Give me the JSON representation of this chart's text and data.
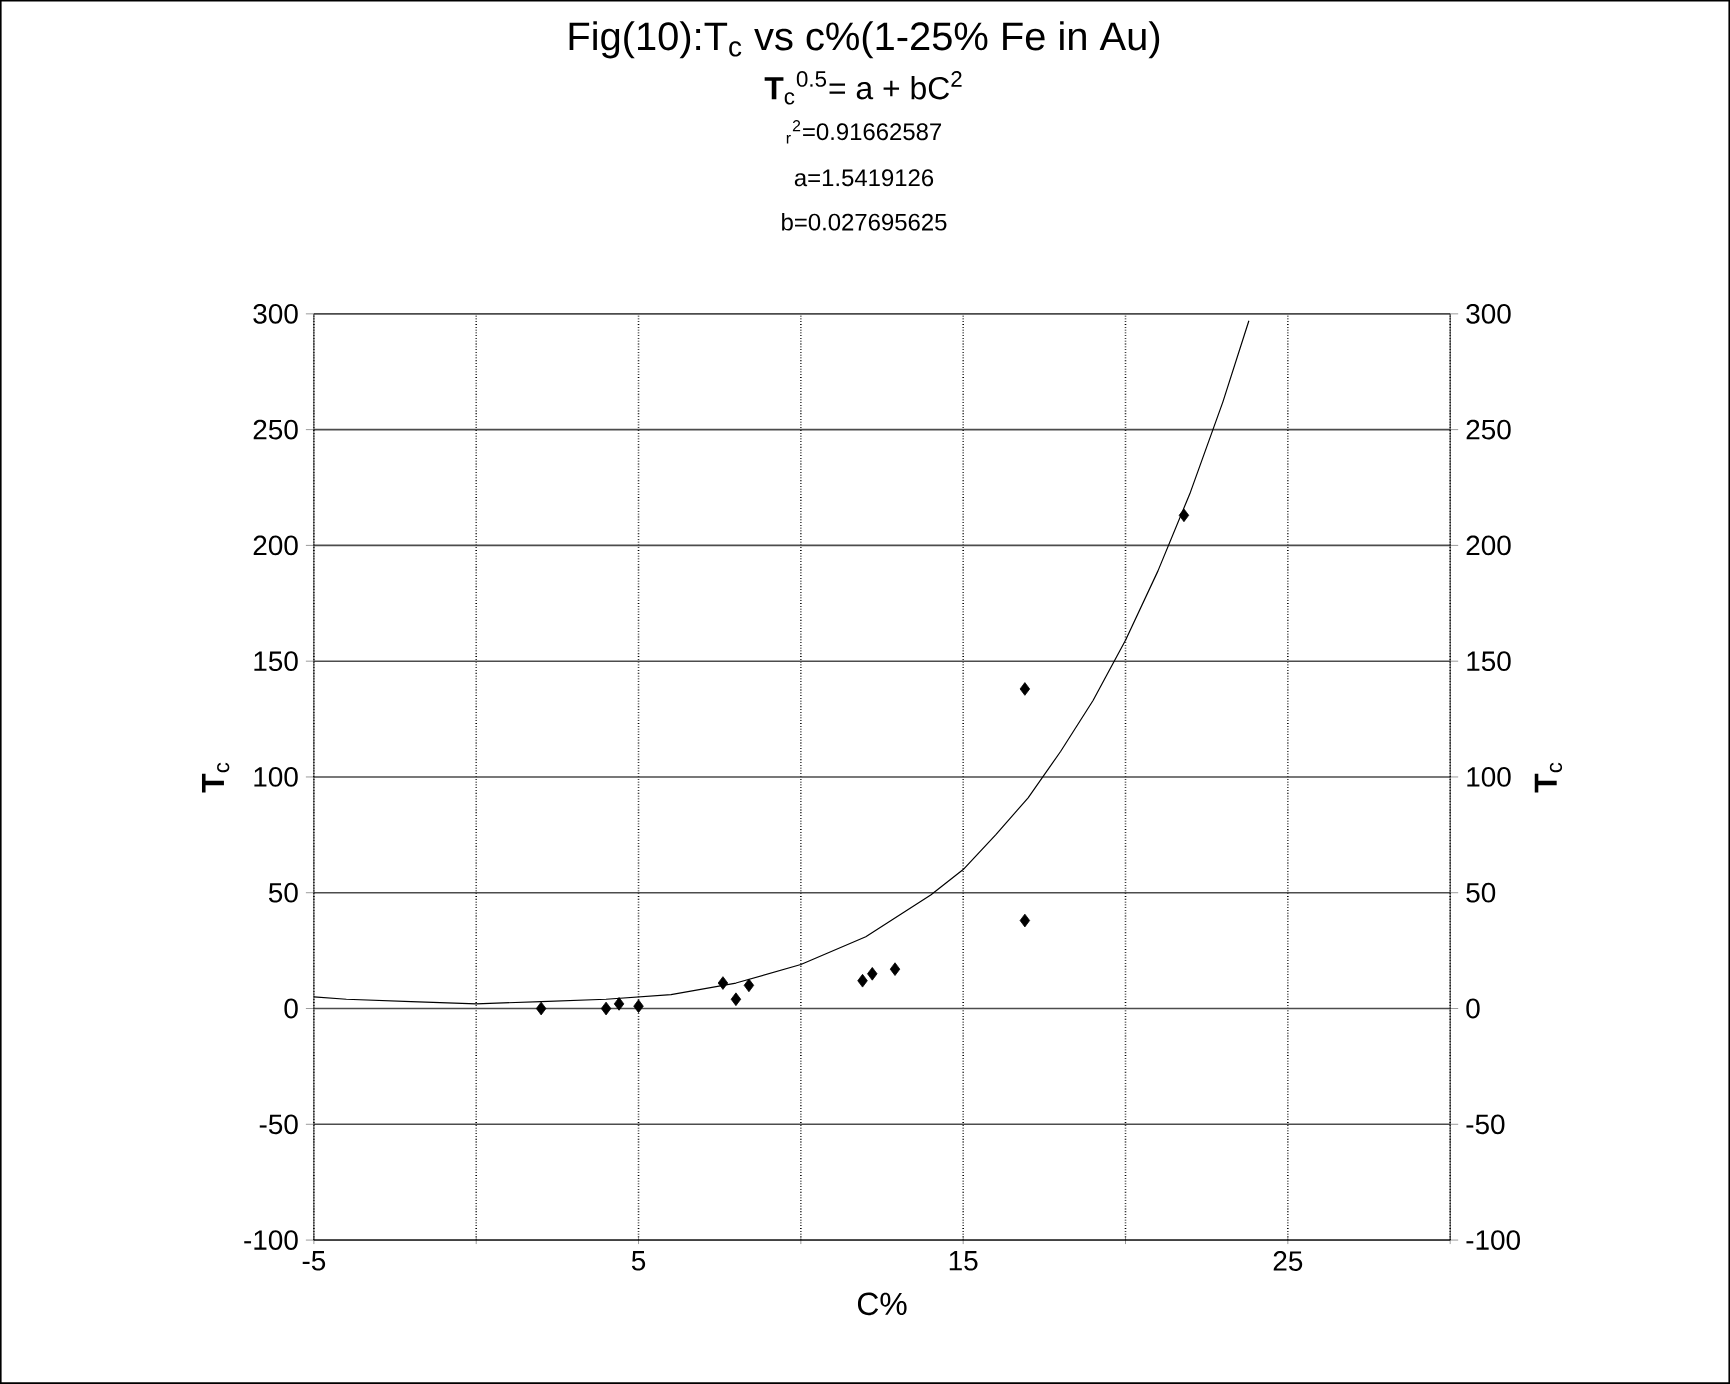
{
  "chart_data": {
    "type": "scatter",
    "title": "Fig(10):T$_{c}$ vs c%(1-25% Fe in Au)",
    "subtitle": "**T**$_{c}$$^{0.5}$= a + bC$^{2}$",
    "annotations": [
      "$_{r}$$^{2}$=0.91662587",
      "a=1.5419126",
      "b=0.027695625"
    ],
    "xlabel": "C%",
    "ylabel": "**T**$_{c}$",
    "y2label": "**T**$_{c}$",
    "series": [
      {
        "color": "#000000",
        "marker": "diamond",
        "x": [
          2,
          4,
          4.4,
          5,
          7.6,
          8,
          8.4,
          11.9,
          12.2,
          12.9,
          16.9,
          16.9,
          21.8
        ],
        "values": [
          0,
          0,
          2,
          1,
          11,
          4,
          10,
          12,
          15,
          17,
          138,
          38,
          213
        ]
      },
      {
        "type": "line",
        "color": "#000000",
        "marker": "none",
        "line_style": "solid",
        "x": [
          -5,
          -4,
          -2,
          0,
          2,
          4,
          6,
          8,
          10,
          12,
          14,
          15,
          16,
          17,
          18,
          19,
          20,
          21,
          22,
          23,
          23.8
        ],
        "values": [
          5,
          4,
          3,
          2,
          3,
          4,
          6,
          11,
          19,
          31,
          49,
          60,
          75,
          91,
          111,
          133,
          159,
          189,
          223,
          262,
          297
        ]
      }
    ],
    "xlim": [
      -5,
      30
    ],
    "xticks": [
      -5,
      {
        "value": 0,
        "label": null
      },
      5,
      {
        "value": 10,
        "label": null
      },
      15,
      {
        "value": 20,
        "label": null
      },
      25,
      {
        "value": 30,
        "label": null
      }
    ],
    "ylim": [
      -100,
      300
    ],
    "yticks": [
      -100,
      -50,
      0,
      50,
      100,
      150,
      200,
      250,
      300
    ],
    "y2lim": [
      -100,
      300
    ],
    "y2ticks": [
      -100,
      -50,
      0,
      50,
      100,
      150,
      200,
      250,
      300
    ],
    "grid": true
  }
}
